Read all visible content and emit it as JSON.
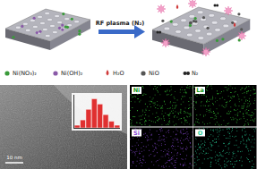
{
  "diagram": {
    "arrow_label": "RF plasma (N₂)",
    "legend": [
      {
        "label": "Ni(NO₃)₂",
        "color": "#3a9a3a"
      },
      {
        "label": "Ni(OH)₂",
        "color": "#8a5aa8"
      },
      {
        "label": "H₂O",
        "color": "#d03a3a"
      },
      {
        "label": "NiO",
        "color": "#555555"
      },
      {
        "label": "N₂",
        "color": "#222222"
      }
    ],
    "eds_maps": [
      {
        "label": "Ni",
        "color": "#3cd23c"
      },
      {
        "label": "La",
        "color": "#3cd23c"
      },
      {
        "label": "Si",
        "color": "#8a4ad8"
      },
      {
        "label": "O",
        "color": "#2ad29a"
      }
    ],
    "scale_bar": "10 nm"
  },
  "chart_data": {
    "type": "bar",
    "categories": [
      null,
      null,
      null,
      null,
      null,
      null,
      null,
      null
    ],
    "values": [
      2,
      6,
      14,
      22,
      18,
      10,
      5,
      2
    ],
    "color": "#e03030",
    "ylim": [
      0,
      25
    ],
    "tick_labels": false
  }
}
